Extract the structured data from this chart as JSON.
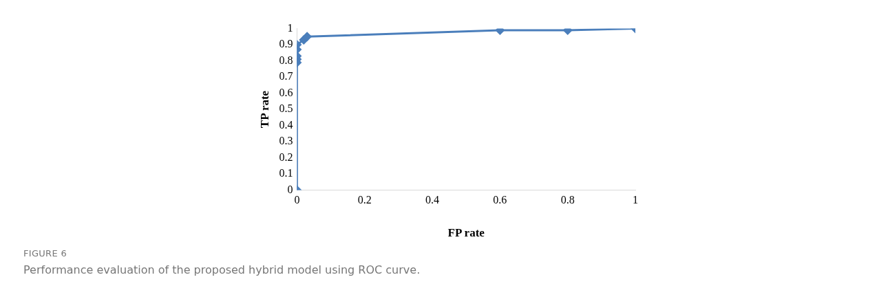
{
  "chart_data": {
    "type": "line",
    "xlabel": "FP rate",
    "ylabel": "TP rate",
    "annotations": [
      "FIGURE 6",
      "Performance evaluation of the proposed hybrid model using ROC curve."
    ],
    "series": [
      {
        "color": "#4a7ebb",
        "x": [
          0,
          0,
          0,
          0,
          0,
          0,
          0.02,
          0.03,
          0.6,
          0.8,
          1
        ],
        "values": [
          0,
          0.79,
          0.81,
          0.83,
          0.87,
          0.9,
          0.93,
          0.95,
          0.99,
          0.99,
          1
        ]
      }
    ],
    "xlim": [
      0,
      1
    ],
    "xticks": [
      0,
      0.2,
      0.4,
      0.6,
      0.8,
      1
    ],
    "ylim": [
      0,
      1
    ],
    "yticks": [
      0,
      0.1,
      0.2,
      0.3,
      0.4,
      0.5,
      0.6,
      0.7,
      0.8,
      0.9,
      1
    ],
    "grid": false,
    "legend": false,
    "marker": "diamond",
    "line_style": "solid"
  }
}
